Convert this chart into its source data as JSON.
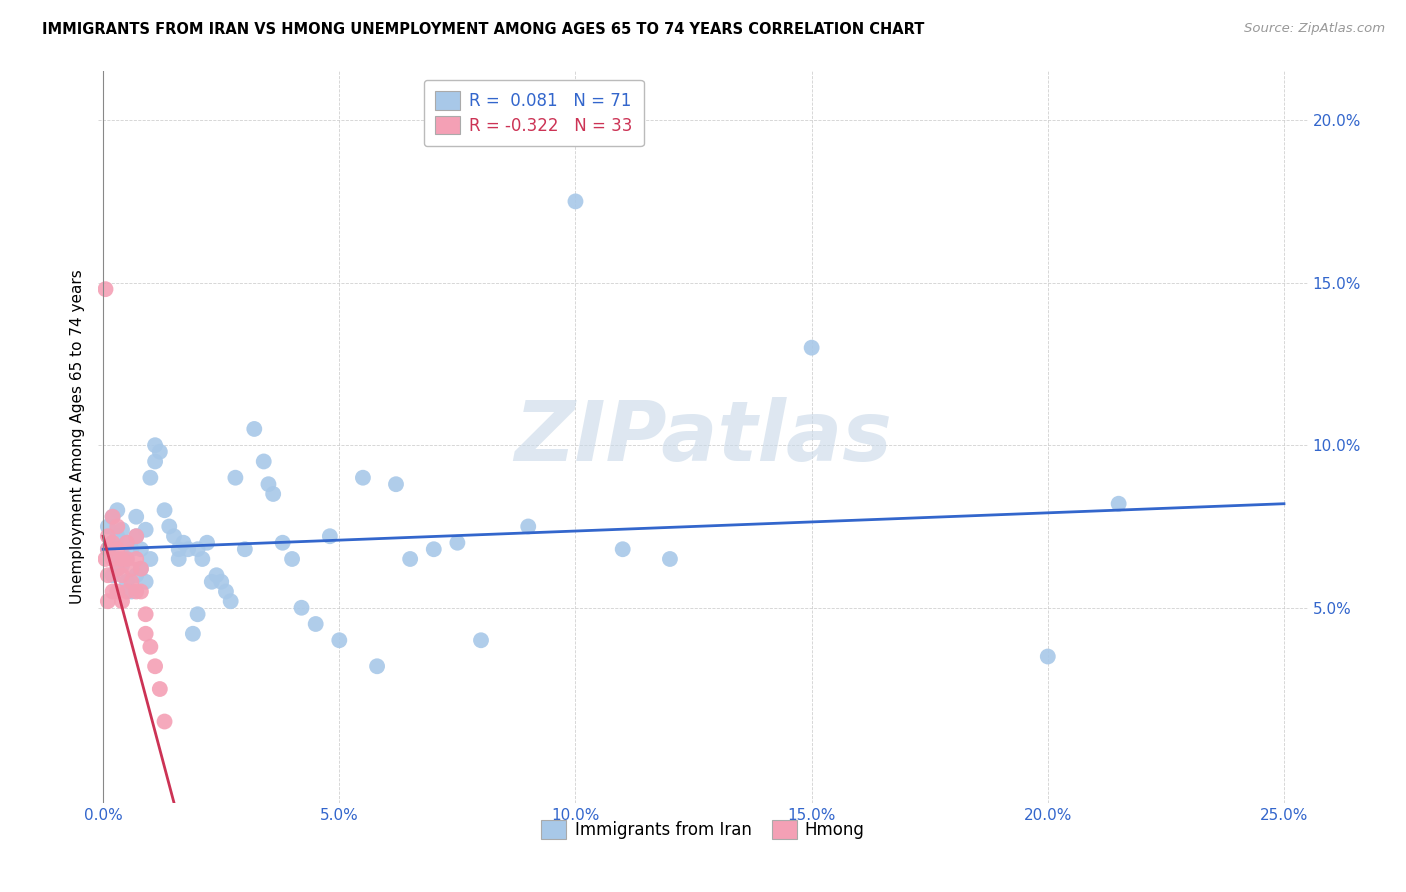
{
  "title": "IMMIGRANTS FROM IRAN VS HMONG UNEMPLOYMENT AMONG AGES 65 TO 74 YEARS CORRELATION CHART",
  "source": "Source: ZipAtlas.com",
  "ylabel": "Unemployment Among Ages 65 to 74 years",
  "xlim": [
    -0.001,
    0.255
  ],
  "ylim": [
    -0.01,
    0.215
  ],
  "xticks": [
    0.0,
    0.05,
    0.1,
    0.15,
    0.2,
    0.25
  ],
  "xticklabels": [
    "0.0%",
    "5.0%",
    "10.0%",
    "15.0%",
    "20.0%",
    "25.0%"
  ],
  "yticks": [
    0.05,
    0.1,
    0.15,
    0.2
  ],
  "yticklabels": [
    "5.0%",
    "10.0%",
    "15.0%",
    "20.0%"
  ],
  "iran_R": 0.081,
  "iran_N": 71,
  "hmong_R": -0.322,
  "hmong_N": 33,
  "iran_color": "#a8c8e8",
  "hmong_color": "#f4a0b5",
  "iran_line_color": "#3366cc",
  "hmong_line_color": "#cc3355",
  "watermark_color": "#c8d8e8",
  "iran_x": [
    0.001,
    0.001,
    0.002,
    0.002,
    0.002,
    0.003,
    0.003,
    0.003,
    0.003,
    0.004,
    0.004,
    0.005,
    0.005,
    0.005,
    0.006,
    0.006,
    0.007,
    0.007,
    0.007,
    0.008,
    0.008,
    0.009,
    0.009,
    0.01,
    0.01,
    0.011,
    0.011,
    0.012,
    0.013,
    0.014,
    0.015,
    0.016,
    0.016,
    0.017,
    0.018,
    0.019,
    0.02,
    0.02,
    0.021,
    0.022,
    0.023,
    0.024,
    0.025,
    0.026,
    0.027,
    0.028,
    0.03,
    0.032,
    0.034,
    0.035,
    0.036,
    0.038,
    0.04,
    0.042,
    0.045,
    0.048,
    0.05,
    0.055,
    0.058,
    0.062,
    0.065,
    0.07,
    0.075,
    0.08,
    0.09,
    0.1,
    0.11,
    0.12,
    0.15,
    0.2,
    0.215
  ],
  "iran_y": [
    0.068,
    0.075,
    0.06,
    0.07,
    0.078,
    0.062,
    0.065,
    0.072,
    0.08,
    0.063,
    0.074,
    0.058,
    0.065,
    0.07,
    0.055,
    0.068,
    0.06,
    0.072,
    0.078,
    0.062,
    0.068,
    0.058,
    0.074,
    0.065,
    0.09,
    0.095,
    0.1,
    0.098,
    0.08,
    0.075,
    0.072,
    0.068,
    0.065,
    0.07,
    0.068,
    0.042,
    0.048,
    0.068,
    0.065,
    0.07,
    0.058,
    0.06,
    0.058,
    0.055,
    0.052,
    0.09,
    0.068,
    0.105,
    0.095,
    0.088,
    0.085,
    0.07,
    0.065,
    0.05,
    0.045,
    0.072,
    0.04,
    0.09,
    0.032,
    0.088,
    0.065,
    0.068,
    0.07,
    0.04,
    0.075,
    0.175,
    0.068,
    0.065,
    0.13,
    0.035,
    0.082
  ],
  "hmong_x": [
    0.0005,
    0.0005,
    0.001,
    0.001,
    0.001,
    0.001,
    0.002,
    0.002,
    0.002,
    0.002,
    0.003,
    0.003,
    0.003,
    0.003,
    0.004,
    0.004,
    0.004,
    0.005,
    0.005,
    0.005,
    0.006,
    0.006,
    0.007,
    0.007,
    0.007,
    0.008,
    0.008,
    0.009,
    0.009,
    0.01,
    0.011,
    0.012,
    0.013
  ],
  "hmong_y": [
    0.148,
    0.065,
    0.06,
    0.068,
    0.072,
    0.052,
    0.078,
    0.065,
    0.07,
    0.055,
    0.075,
    0.068,
    0.062,
    0.055,
    0.065,
    0.06,
    0.052,
    0.07,
    0.065,
    0.055,
    0.062,
    0.058,
    0.072,
    0.065,
    0.055,
    0.062,
    0.055,
    0.048,
    0.042,
    0.038,
    0.032,
    0.025,
    0.015
  ],
  "iran_line_x": [
    0.0,
    0.25
  ],
  "iran_line_y": [
    0.068,
    0.082
  ],
  "hmong_line_x": [
    0.0,
    0.015
  ],
  "hmong_line_y": [
    0.072,
    -0.01
  ]
}
